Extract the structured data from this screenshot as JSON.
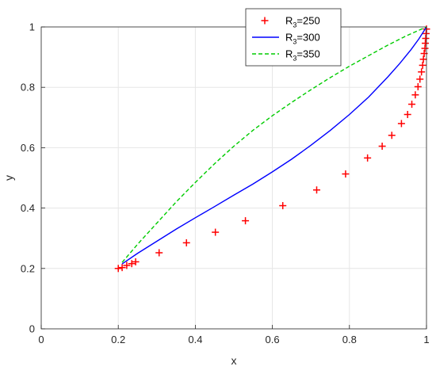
{
  "chart_data": {
    "type": "line",
    "title": "",
    "xlabel": "x",
    "ylabel": "y",
    "xlim": [
      0,
      1
    ],
    "ylim": [
      0,
      1
    ],
    "xticks": [
      "0",
      "0.2",
      "0.4",
      "0.6",
      "0.8",
      "1"
    ],
    "yticks": [
      "0",
      "0.2",
      "0.4",
      "0.6",
      "0.8",
      "1"
    ],
    "grid": true,
    "legend_position": "top-right",
    "series": [
      {
        "name": "R3=250",
        "name_parts": {
          "prefix": "R",
          "sub": "3",
          "suffix": "=250"
        },
        "style": "markers-plus",
        "color": "#ff0000",
        "x": [
          0.2,
          0.21,
          0.222,
          0.235,
          0.245,
          0.306,
          0.377,
          0.452,
          0.53,
          0.627,
          0.715,
          0.79,
          0.847,
          0.885,
          0.91,
          0.935,
          0.951,
          0.962,
          0.971,
          0.978,
          0.983,
          0.987,
          0.99,
          0.992,
          0.994,
          0.996,
          0.997,
          0.998,
          0.999,
          1.0
        ],
        "y": [
          0.2,
          0.203,
          0.21,
          0.216,
          0.222,
          0.252,
          0.285,
          0.32,
          0.358,
          0.408,
          0.46,
          0.513,
          0.566,
          0.605,
          0.641,
          0.68,
          0.71,
          0.744,
          0.775,
          0.802,
          0.827,
          0.851,
          0.873,
          0.893,
          0.912,
          0.929,
          0.946,
          0.962,
          0.978,
          0.993
        ]
      },
      {
        "name": "R3=300",
        "name_parts": {
          "prefix": "R",
          "sub": "3",
          "suffix": "=300"
        },
        "style": "solid",
        "color": "#0000ff",
        "x": [
          0.21,
          0.25,
          0.3,
          0.35,
          0.4,
          0.45,
          0.5,
          0.55,
          0.6,
          0.65,
          0.7,
          0.75,
          0.8,
          0.85,
          0.9,
          0.93,
          0.96,
          0.98,
          0.99,
          1.0
        ],
        "y": [
          0.215,
          0.25,
          0.29,
          0.33,
          0.368,
          0.405,
          0.443,
          0.48,
          0.52,
          0.562,
          0.608,
          0.657,
          0.71,
          0.768,
          0.835,
          0.878,
          0.925,
          0.96,
          0.98,
          1.0
        ]
      },
      {
        "name": "R3=350",
        "name_parts": {
          "prefix": "R",
          "sub": "3",
          "suffix": "=350"
        },
        "style": "dashed",
        "color": "#00cc00",
        "x": [
          0.21,
          0.25,
          0.3,
          0.35,
          0.4,
          0.45,
          0.5,
          0.55,
          0.6,
          0.65,
          0.7,
          0.75,
          0.8,
          0.85,
          0.9,
          0.95,
          1.0
        ],
        "y": [
          0.22,
          0.28,
          0.35,
          0.42,
          0.485,
          0.547,
          0.605,
          0.658,
          0.706,
          0.75,
          0.792,
          0.832,
          0.87,
          0.905,
          0.94,
          0.972,
          1.0
        ]
      }
    ]
  }
}
